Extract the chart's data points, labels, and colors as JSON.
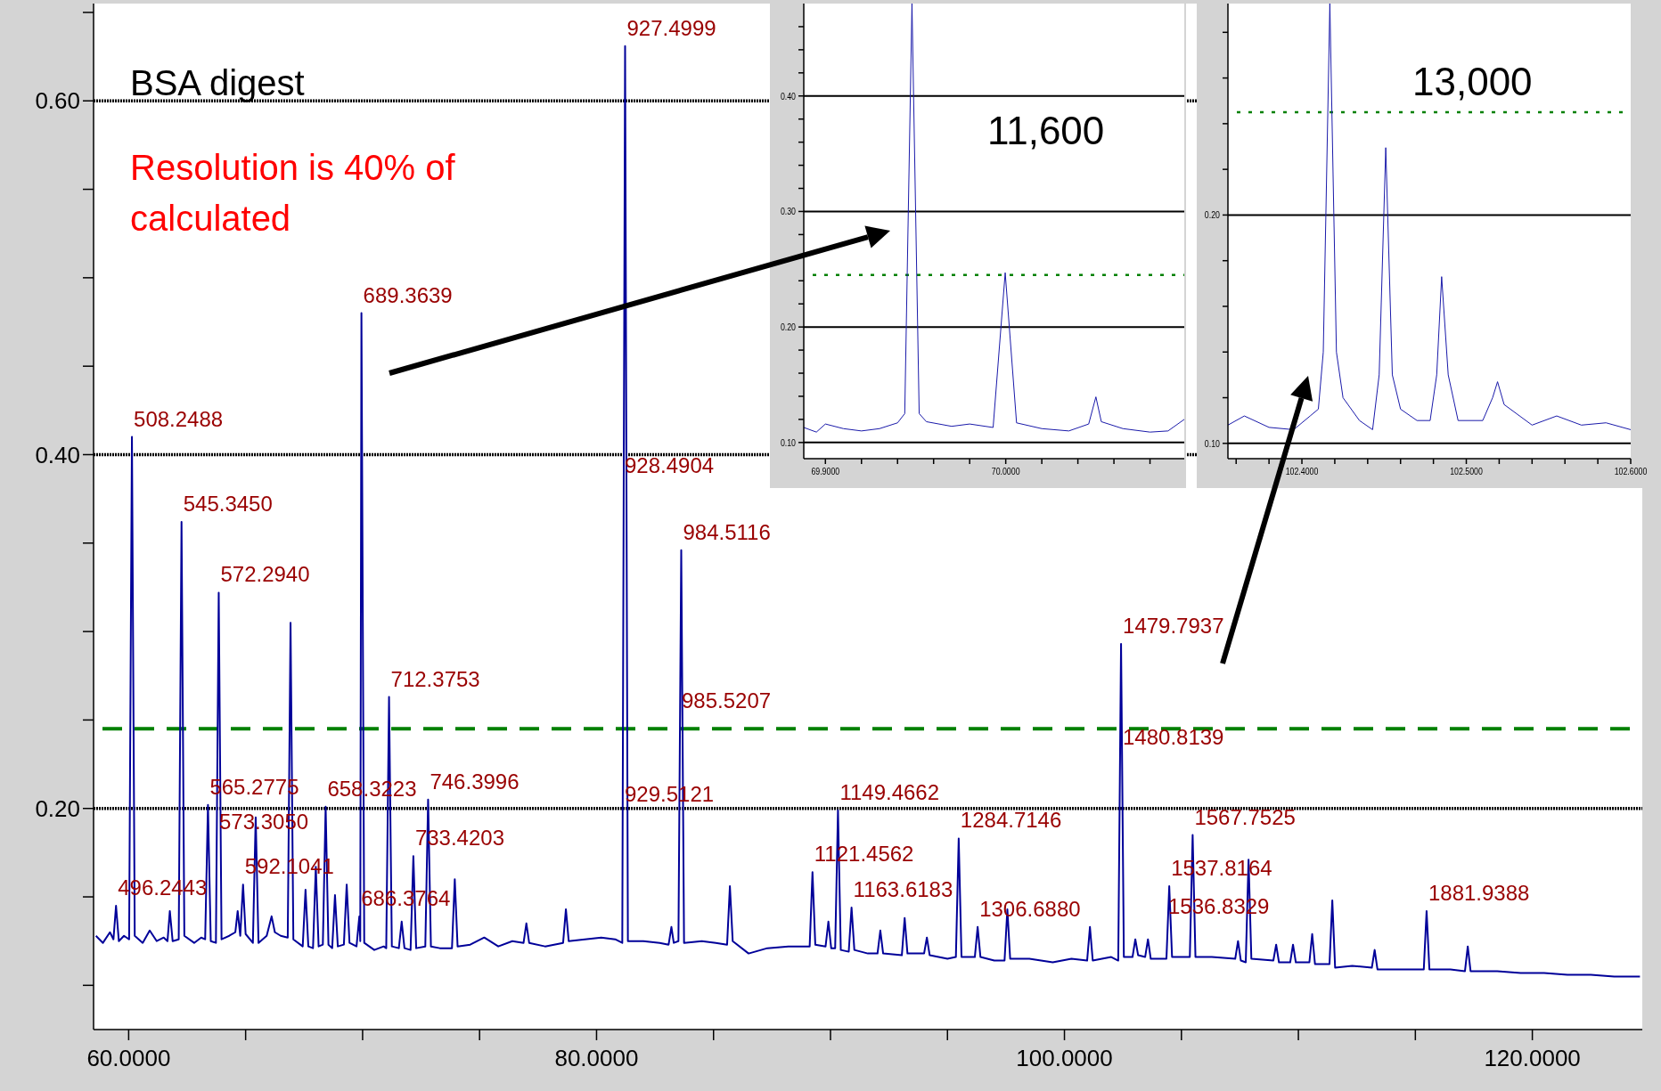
{
  "chart_data": [
    {
      "type": "line",
      "xlim": [
        58.5,
        124.7
      ],
      "ylim": [
        0.075,
        0.655
      ],
      "xticks": [
        {
          "value": 60,
          "label": "60.0000"
        },
        {
          "value": 65,
          "label": null
        },
        {
          "value": 70,
          "label": null
        },
        {
          "value": 75,
          "label": null
        },
        {
          "value": 80,
          "label": "80.0000"
        },
        {
          "value": 85,
          "label": null
        },
        {
          "value": 90,
          "label": null
        },
        {
          "value": 95,
          "label": null
        },
        {
          "value": 100,
          "label": "100.0000"
        },
        {
          "value": 105,
          "label": null
        },
        {
          "value": 110,
          "label": null
        },
        {
          "value": 115,
          "label": null
        },
        {
          "value": 120,
          "label": "120.0000"
        }
      ],
      "yticks": [
        {
          "value": 0.1,
          "label": null
        },
        {
          "value": 0.15,
          "label": null
        },
        {
          "value": 0.2,
          "label": "0.20"
        },
        {
          "value": 0.25,
          "label": null
        },
        {
          "value": 0.3,
          "label": null
        },
        {
          "value": 0.35,
          "label": null
        },
        {
          "value": 0.4,
          "label": "0.40"
        },
        {
          "value": 0.45,
          "label": null
        },
        {
          "value": 0.5,
          "label": null
        },
        {
          "value": 0.55,
          "label": null
        },
        {
          "value": 0.6,
          "label": "0.60"
        },
        {
          "value": 0.65,
          "label": null
        }
      ],
      "grid": "y",
      "ref_lines": [
        {
          "axis": "y",
          "value": 0.245,
          "color": "#008000",
          "line_style": "dashed"
        }
      ],
      "series": [
        {
          "color": "#000099",
          "x": [
            58.6,
            58.9,
            59.2,
            59.35,
            59.46,
            59.58,
            59.8,
            60.02,
            60.14,
            60.26,
            60.6,
            60.9,
            61.2,
            61.5,
            61.66,
            61.76,
            61.88,
            62.14,
            62.26,
            62.38,
            62.8,
            63.1,
            63.27,
            63.39,
            63.51,
            63.73,
            63.85,
            63.97,
            64.3,
            64.56,
            64.66,
            64.77,
            64.89,
            65.0,
            65.31,
            65.43,
            65.55,
            65.9,
            66.11,
            66.25,
            66.5,
            66.8,
            66.92,
            67.04,
            67.44,
            67.56,
            67.68,
            67.88,
            68.0,
            68.12,
            68.3,
            68.42,
            68.54,
            68.7,
            68.82,
            68.94,
            69.2,
            69.32,
            69.44,
            69.74,
            69.86,
            69.9,
            69.95,
            70.07,
            70.5,
            70.9,
            71.01,
            71.13,
            71.25,
            71.55,
            71.67,
            71.79,
            72.05,
            72.17,
            72.29,
            72.68,
            72.8,
            72.92,
            73.3,
            73.82,
            73.94,
            74.06,
            74.6,
            75.2,
            75.8,
            76.4,
            76.88,
            77.0,
            77.12,
            77.8,
            78.57,
            78.69,
            78.81,
            79.5,
            80.2,
            80.8,
            81.1,
            81.22,
            81.34,
            82.0,
            82.7,
            83.08,
            83.2,
            83.3,
            83.5,
            83.62,
            83.74,
            84.5,
            85.1,
            85.58,
            85.7,
            85.82,
            86.5,
            87.3,
            88.2,
            88.9,
            89.11,
            89.23,
            89.35,
            89.79,
            89.91,
            90.03,
            90.2,
            90.32,
            90.44,
            90.78,
            90.9,
            91.02,
            91.6,
            92.01,
            92.13,
            92.25,
            93.05,
            93.17,
            93.29,
            94.0,
            94.12,
            94.24,
            95.0,
            95.36,
            95.48,
            95.6,
            96.17,
            96.29,
            96.41,
            97.0,
            97.44,
            97.56,
            97.68,
            98.5,
            99.5,
            100.3,
            100.97,
            101.09,
            101.21,
            102.0,
            102.3,
            102.42,
            102.54,
            102.91,
            103.03,
            103.15,
            103.45,
            103.57,
            103.69,
            104.36,
            104.48,
            104.6,
            105.36,
            105.48,
            105.6,
            106.3,
            107.3,
            107.42,
            107.54,
            107.75,
            107.87,
            107.99,
            108.93,
            109.05,
            109.17,
            109.65,
            109.77,
            109.89,
            110.47,
            110.59,
            110.71,
            111.33,
            111.45,
            111.57,
            112.3,
            113.14,
            113.26,
            113.38,
            114.5,
            115.36,
            115.48,
            115.6,
            116.5,
            117.12,
            117.24,
            117.36,
            118.5,
            119.5,
            120.5,
            121.5,
            122.5,
            123.5,
            124.6
          ],
          "values": [
            0.128,
            0.124,
            0.13,
            0.126,
            0.145,
            0.125,
            0.128,
            0.126,
            0.41,
            0.128,
            0.124,
            0.131,
            0.125,
            0.127,
            0.125,
            0.142,
            0.125,
            0.126,
            0.362,
            0.128,
            0.124,
            0.127,
            0.126,
            0.202,
            0.125,
            0.124,
            0.322,
            0.126,
            0.128,
            0.13,
            0.142,
            0.128,
            0.157,
            0.129,
            0.124,
            0.195,
            0.124,
            0.128,
            0.139,
            0.13,
            0.128,
            0.127,
            0.305,
            0.126,
            0.122,
            0.154,
            0.122,
            0.121,
            0.167,
            0.122,
            0.123,
            0.201,
            0.123,
            0.121,
            0.151,
            0.122,
            0.123,
            0.157,
            0.124,
            0.122,
            0.139,
            0.125,
            0.48,
            0.124,
            0.12,
            0.122,
            0.121,
            0.263,
            0.122,
            0.121,
            0.136,
            0.121,
            0.12,
            0.173,
            0.121,
            0.122,
            0.205,
            0.122,
            0.121,
            0.121,
            0.16,
            0.122,
            0.123,
            0.127,
            0.122,
            0.125,
            0.124,
            0.135,
            0.124,
            0.122,
            0.124,
            0.143,
            0.125,
            0.126,
            0.127,
            0.126,
            0.124,
            0.631,
            0.125,
            0.125,
            0.124,
            0.123,
            0.133,
            0.124,
            0.125,
            0.346,
            0.124,
            0.125,
            0.124,
            0.123,
            0.156,
            0.125,
            0.118,
            0.121,
            0.122,
            0.122,
            0.122,
            0.164,
            0.123,
            0.122,
            0.136,
            0.121,
            0.121,
            0.199,
            0.12,
            0.119,
            0.144,
            0.12,
            0.118,
            0.118,
            0.131,
            0.118,
            0.117,
            0.138,
            0.118,
            0.118,
            0.127,
            0.117,
            0.115,
            0.116,
            0.183,
            0.116,
            0.116,
            0.133,
            0.116,
            0.114,
            0.114,
            0.143,
            0.115,
            0.115,
            0.113,
            0.115,
            0.114,
            0.133,
            0.114,
            0.116,
            0.114,
            0.293,
            0.116,
            0.116,
            0.126,
            0.117,
            0.116,
            0.126,
            0.115,
            0.115,
            0.156,
            0.116,
            0.116,
            0.185,
            0.116,
            0.116,
            0.115,
            0.125,
            0.114,
            0.113,
            0.171,
            0.115,
            0.114,
            0.123,
            0.113,
            0.113,
            0.123,
            0.113,
            0.113,
            0.129,
            0.112,
            0.112,
            0.148,
            0.11,
            0.111,
            0.11,
            0.12,
            0.109,
            0.109,
            0.109,
            0.142,
            0.109,
            0.109,
            0.108,
            0.122,
            0.108,
            0.108,
            0.107,
            0.107,
            0.106,
            0.106,
            0.105,
            0.105
          ]
        }
      ],
      "annotations": [
        "BSA digest",
        "Resolution is 40% of calculated",
        "573.3050",
        "928.4904",
        "929.5121",
        "985.5207",
        "1480.8139",
        "1536.8329",
        {
          "text": "686.3764",
          "x": 69.86,
          "y": 0.139
        },
        {
          "text": "496.2443",
          "x": 59.46,
          "y": 0.145
        },
        {
          "text": "508.2488",
          "x": 60.14,
          "y": 0.41
        },
        {
          "text": "545.3450",
          "x": 62.26,
          "y": 0.362
        },
        {
          "text": "572.2940",
          "x": 63.85,
          "y": 0.322
        },
        {
          "text": "565.2775",
          "x": 63.39,
          "y": 0.202
        },
        {
          "text": "592.1041",
          "x": 64.89,
          "y": 0.157
        },
        {
          "text": "658.3223",
          "x": 68.42,
          "y": 0.201
        },
        {
          "text": "689.3639",
          "x": 69.95,
          "y": 0.48
        },
        {
          "text": "712.3753",
          "x": 71.13,
          "y": 0.263
        },
        {
          "text": "746.3996",
          "x": 72.8,
          "y": 0.205
        },
        {
          "text": "733.4203",
          "x": 72.17,
          "y": 0.173
        },
        {
          "text": "927.4999",
          "x": 81.22,
          "y": 0.631
        },
        {
          "text": "984.5116",
          "x": 83.62,
          "y": 0.346
        },
        {
          "text": "1121.4562",
          "x": 89.23,
          "y": 0.164
        },
        {
          "text": "1149.4662",
          "x": 90.32,
          "y": 0.199
        },
        {
          "text": "1163.6183",
          "x": 90.9,
          "y": 0.144
        },
        {
          "text": "1284.7146",
          "x": 95.48,
          "y": 0.183
        },
        {
          "text": "1306.6880",
          "x": 96.29,
          "y": 0.133
        },
        {
          "text": "1479.7937",
          "x": 102.42,
          "y": 0.293
        },
        {
          "text": "1537.8164",
          "x": 104.48,
          "y": 0.156
        },
        {
          "text": "1567.7525",
          "x": 105.48,
          "y": 0.185
        },
        {
          "text": "1881.9388",
          "x": 115.48,
          "y": 0.142
        }
      ]
    },
    {
      "type": "line",
      "xlim": [
        69.888,
        70.099
      ],
      "ylim": [
        0.086,
        0.48
      ],
      "xticks": [
        {
          "value": 69.9,
          "label": "69.9000"
        },
        {
          "value": 69.92,
          "label": null
        },
        {
          "value": 69.94,
          "label": null
        },
        {
          "value": 69.96,
          "label": null
        },
        {
          "value": 69.98,
          "label": null
        },
        {
          "value": 70.0,
          "label": "70.0000"
        },
        {
          "value": 70.02,
          "label": null
        },
        {
          "value": 70.04,
          "label": null
        },
        {
          "value": 70.06,
          "label": null
        },
        {
          "value": 70.08,
          "label": null
        }
      ],
      "yticks": [
        {
          "value": 0.1,
          "label": "0.10"
        },
        {
          "value": 0.12,
          "label": null
        },
        {
          "value": 0.14,
          "label": null
        },
        {
          "value": 0.16,
          "label": null
        },
        {
          "value": 0.18,
          "label": null
        },
        {
          "value": 0.2,
          "label": "0.20"
        },
        {
          "value": 0.22,
          "label": null
        },
        {
          "value": 0.24,
          "label": null
        },
        {
          "value": 0.26,
          "label": null
        },
        {
          "value": 0.28,
          "label": null
        },
        {
          "value": 0.3,
          "label": "0.30"
        },
        {
          "value": 0.32,
          "label": null
        },
        {
          "value": 0.34,
          "label": null
        },
        {
          "value": 0.36,
          "label": null
        },
        {
          "value": 0.38,
          "label": null
        },
        {
          "value": 0.4,
          "label": "0.40"
        },
        {
          "value": 0.42,
          "label": null
        },
        {
          "value": 0.44,
          "label": null
        },
        {
          "value": 0.46,
          "label": null
        }
      ],
      "grid": "y",
      "ref_lines": [
        {
          "axis": "y",
          "value": 0.245,
          "color": "#008000",
          "line_style": "dotted"
        }
      ],
      "series": [
        {
          "color": "#1a1aaa",
          "x": [
            69.888,
            69.895,
            69.9,
            69.91,
            69.92,
            69.93,
            69.94,
            69.944,
            69.948,
            69.952,
            69.956,
            69.97,
            69.98,
            69.993,
            69.9997,
            70.006,
            70.02,
            70.035,
            70.046,
            70.05,
            70.053,
            70.065,
            70.08,
            70.09,
            70.099
          ],
          "values": [
            0.113,
            0.109,
            0.116,
            0.112,
            0.11,
            0.112,
            0.117,
            0.125,
            0.48,
            0.125,
            0.118,
            0.114,
            0.116,
            0.113,
            0.247,
            0.117,
            0.112,
            0.11,
            0.116,
            0.1395,
            0.118,
            0.112,
            0.109,
            0.11,
            0.12
          ]
        }
      ],
      "annotations": [
        "11,600"
      ]
    },
    {
      "type": "line",
      "xlim": [
        102.355,
        102.6
      ],
      "ylim": [
        0.0933,
        0.2926
      ],
      "xticks": [
        {
          "value": 102.36,
          "label": null
        },
        {
          "value": 102.38,
          "label": null
        },
        {
          "value": 102.4,
          "label": "102.4000"
        },
        {
          "value": 102.42,
          "label": null
        },
        {
          "value": 102.44,
          "label": null
        },
        {
          "value": 102.46,
          "label": null
        },
        {
          "value": 102.48,
          "label": null
        },
        {
          "value": 102.5,
          "label": "102.5000"
        },
        {
          "value": 102.52,
          "label": null
        },
        {
          "value": 102.54,
          "label": null
        },
        {
          "value": 102.56,
          "label": null
        },
        {
          "value": 102.58,
          "label": null
        },
        {
          "value": 102.6,
          "label": "102.6000"
        }
      ],
      "yticks": [
        {
          "value": 0.1,
          "label": "0.10"
        },
        {
          "value": 0.12,
          "label": null
        },
        {
          "value": 0.14,
          "label": null
        },
        {
          "value": 0.16,
          "label": null
        },
        {
          "value": 0.18,
          "label": null
        },
        {
          "value": 0.2,
          "label": "0.20"
        },
        {
          "value": 0.22,
          "label": null
        },
        {
          "value": 0.24,
          "label": null
        },
        {
          "value": 0.26,
          "label": null
        },
        {
          "value": 0.28,
          "label": null
        }
      ],
      "grid": "y",
      "ref_lines": [
        {
          "axis": "y",
          "value": 0.245,
          "color": "#008000",
          "line_style": "dotted"
        }
      ],
      "series": [
        {
          "color": "#1a1aaa",
          "x": [
            102.355,
            102.365,
            102.38,
            102.395,
            102.405,
            102.41,
            102.413,
            102.417,
            102.421,
            102.425,
            102.435,
            102.443,
            102.447,
            102.451,
            102.455,
            102.46,
            102.47,
            102.478,
            102.482,
            102.485,
            102.489,
            102.495,
            102.51,
            102.516,
            102.519,
            102.523,
            102.54,
            102.555,
            102.57,
            102.585,
            102.6
          ],
          "values": [
            0.108,
            0.112,
            0.107,
            0.106,
            0.112,
            0.115,
            0.14,
            0.2926,
            0.14,
            0.12,
            0.11,
            0.106,
            0.13,
            0.2295,
            0.13,
            0.115,
            0.11,
            0.11,
            0.13,
            0.173,
            0.13,
            0.11,
            0.11,
            0.12,
            0.127,
            0.117,
            0.108,
            0.112,
            0.108,
            0.109,
            0.106
          ]
        }
      ],
      "annotations": [
        "13,000"
      ]
    }
  ]
}
